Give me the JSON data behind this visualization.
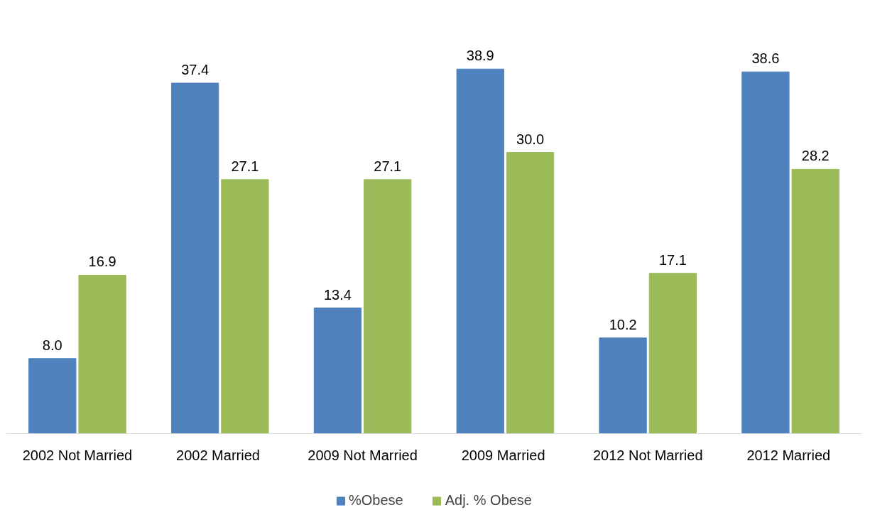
{
  "chart_data": {
    "type": "bar",
    "categories": [
      "2002 Not Married",
      "2002  Married",
      "2009 Not Married",
      "2009  Married",
      "2012 Not Married",
      "2012  Married"
    ],
    "series": [
      {
        "name": "%Obese",
        "color": "#4f81bd",
        "values": [
          8.0,
          37.4,
          13.4,
          38.9,
          10.2,
          38.6
        ],
        "value_labels": [
          "8.0",
          "37.4",
          "13.4",
          "38.9",
          "10.2",
          "38.6"
        ]
      },
      {
        "name": "Adj. % Obese",
        "color": "#9bbb59",
        "values": [
          16.9,
          27.1,
          27.1,
          30.0,
          17.1,
          28.2
        ],
        "value_labels": [
          "16.9",
          "27.1",
          "27.1",
          "30.0",
          "17.1",
          "28.2"
        ]
      }
    ],
    "data_labels": true,
    "legend": "bottom",
    "grid": false
  }
}
